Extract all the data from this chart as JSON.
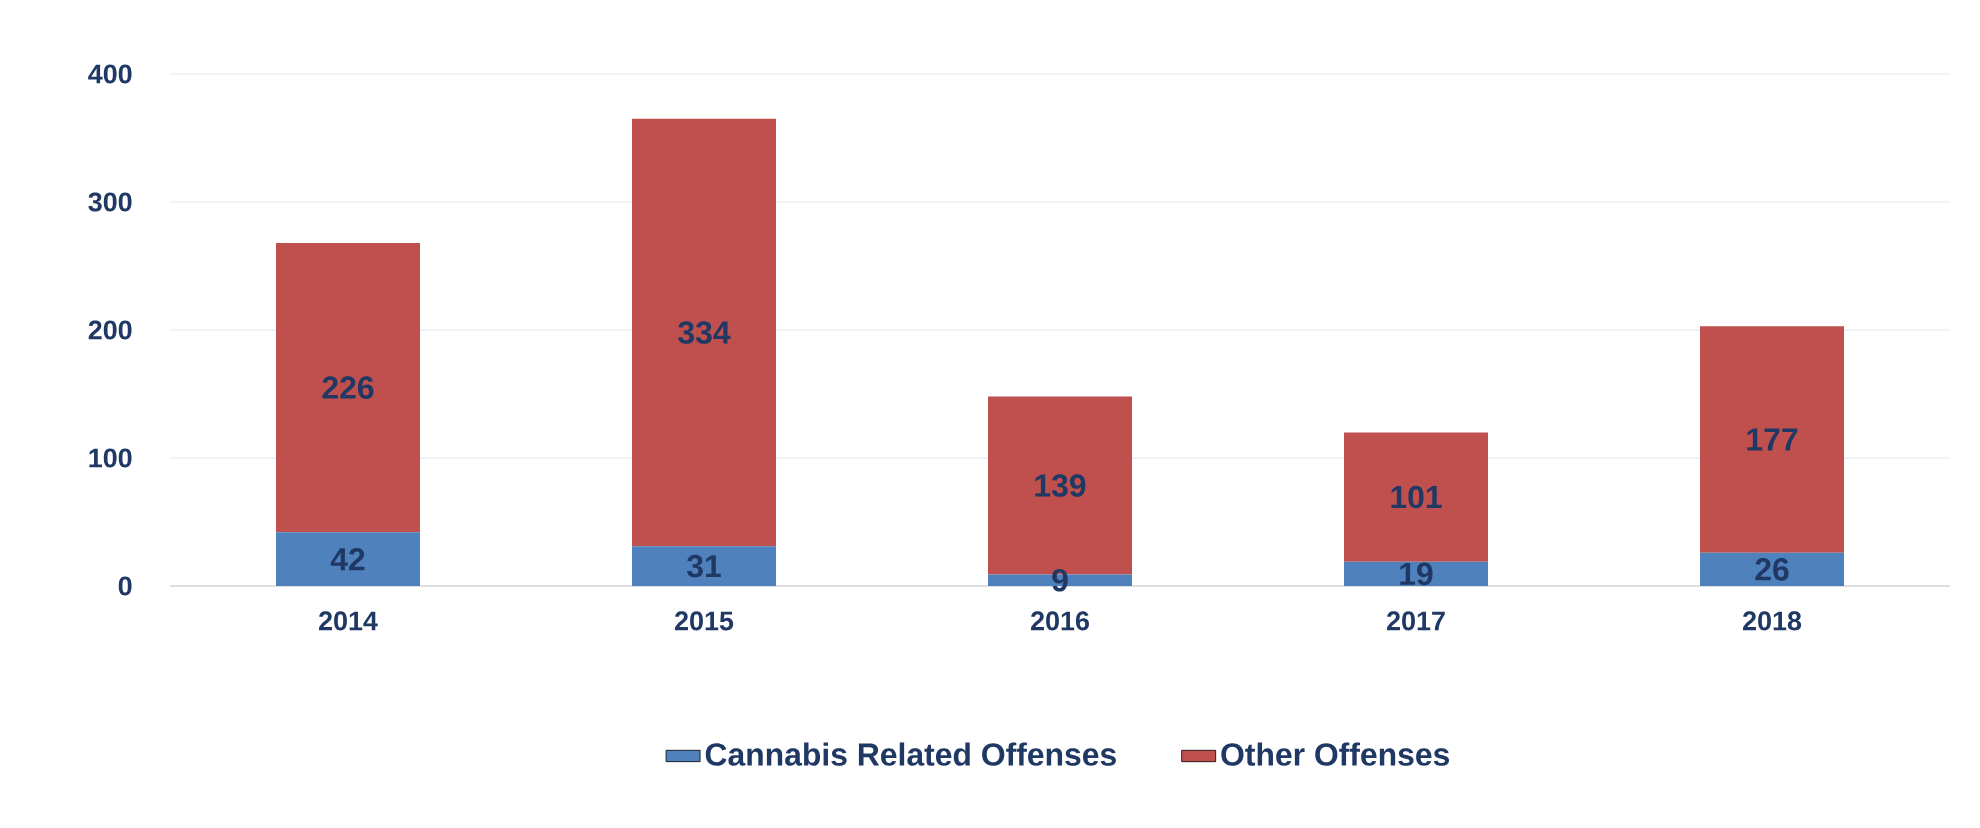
{
  "chart_data": {
    "type": "bar",
    "stacked": true,
    "categories": [
      "2014",
      "2015",
      "2016",
      "2017",
      "2018"
    ],
    "series": [
      {
        "name": "Cannabis Related Offenses",
        "color": "#4F81BD",
        "values": [
          42,
          31,
          9,
          19,
          26
        ]
      },
      {
        "name": "Other Offenses",
        "color": "#C0504D",
        "values": [
          226,
          334,
          139,
          101,
          177
        ]
      }
    ],
    "ylim": [
      0,
      400
    ],
    "yticks": [
      0,
      100,
      200,
      300,
      400
    ],
    "grid": "y",
    "legend": "bottom",
    "data_labels": true
  }
}
